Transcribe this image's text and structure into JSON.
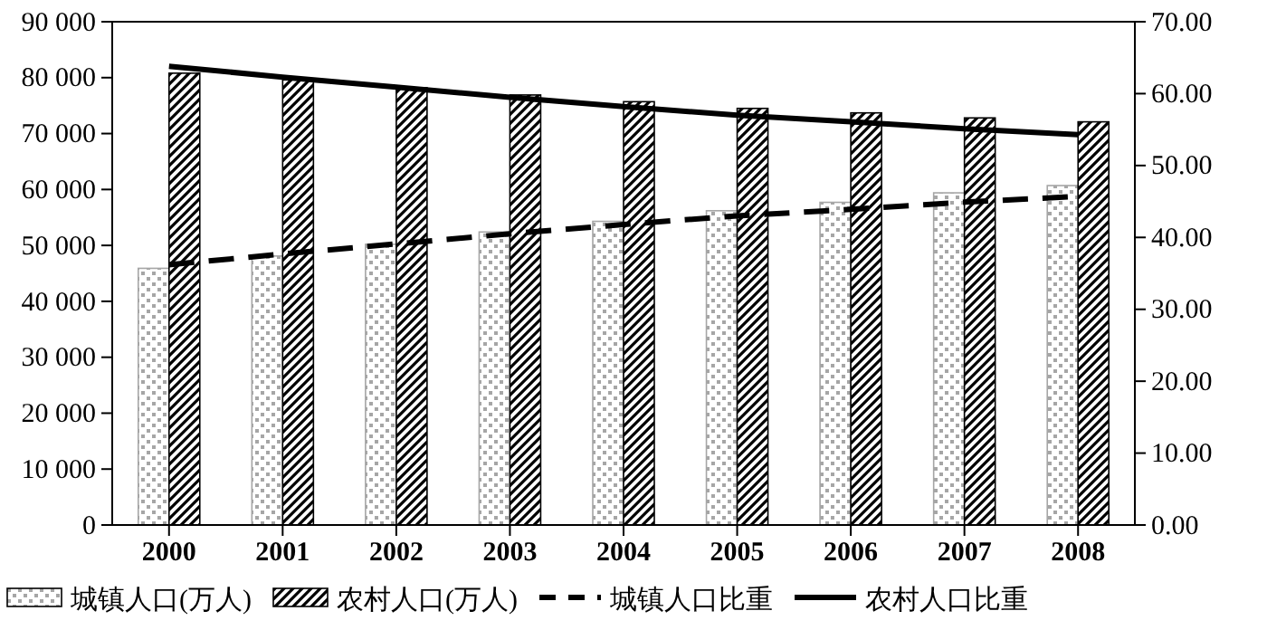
{
  "chart_data": {
    "type": "bar",
    "categories": [
      "2000",
      "2001",
      "2002",
      "2003",
      "2004",
      "2005",
      "2006",
      "2007",
      "2008"
    ],
    "series": [
      {
        "name": "城镇人口(万人)",
        "color": "#a6a6a6",
        "values": [
          45900,
          48100,
          50200,
          52400,
          54300,
          56200,
          57700,
          59400,
          60700
        ]
      },
      {
        "name": "农村人口(万人)",
        "color": "#000000",
        "values": [
          80800,
          79600,
          78200,
          76900,
          75700,
          74500,
          73700,
          72800,
          72100
        ]
      },
      {
        "name": "城镇人口比重",
        "type": "line",
        "axis": "y2",
        "color": "#000000",
        "line_style": "dashed",
        "values": [
          36.2,
          37.7,
          39.1,
          40.5,
          41.8,
          43.0,
          43.9,
          44.9,
          45.7
        ]
      },
      {
        "name": "农村人口比重",
        "type": "line",
        "axis": "y2",
        "color": "#000000",
        "line_style": "solid",
        "values": [
          63.8,
          62.3,
          60.9,
          59.5,
          58.2,
          57.0,
          56.1,
          55.1,
          54.3
        ]
      }
    ],
    "ylim": [
      0,
      90000
    ],
    "yticks": [
      0,
      {
        "value": 10000,
        "label": "10 000"
      },
      {
        "value": 20000,
        "label": "20 000"
      },
      {
        "value": 30000,
        "label": "30 000"
      },
      {
        "value": 40000,
        "label": "40 000"
      },
      {
        "value": 50000,
        "label": "50 000"
      },
      {
        "value": 60000,
        "label": "60 000"
      },
      {
        "value": 70000,
        "label": "70 000"
      },
      {
        "value": 80000,
        "label": "80 000"
      },
      {
        "value": 90000,
        "label": "90 000"
      }
    ],
    "y2lim": [
      0,
      70
    ],
    "y2ticks": [
      {
        "value": 0,
        "label": "0.00"
      },
      {
        "value": 10,
        "label": "10.00"
      },
      {
        "value": 20,
        "label": "20.00"
      },
      {
        "value": 30,
        "label": "30.00"
      },
      {
        "value": 40,
        "label": "40.00"
      },
      {
        "value": 50,
        "label": "50.00"
      },
      {
        "value": 60,
        "label": "60.00"
      },
      {
        "value": 70,
        "label": "70.00"
      }
    ],
    "legend": "bottom",
    "grid": false,
    "marker": "none"
  }
}
